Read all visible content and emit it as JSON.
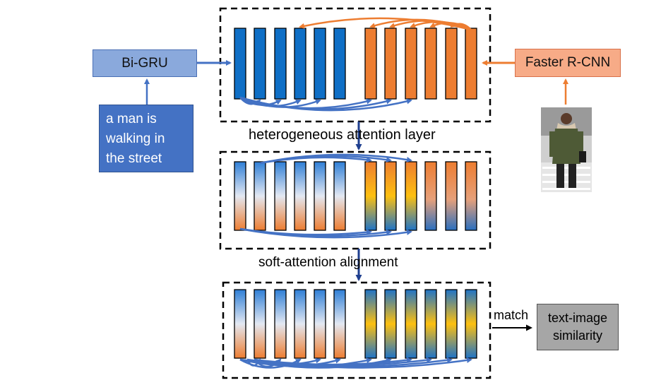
{
  "labels": {
    "bi_gru": "Bi-GRU",
    "faster_rcnn": "Faster R-CNN",
    "query_text": "a man is\nwalking in\nthe street",
    "heterogeneous_layer": "heterogeneous attention layer",
    "soft_attention": "soft-attention alignment",
    "match": "match",
    "similarity": "text-image\nsimilarity"
  },
  "stages": {
    "text_features_per_stage": 6,
    "image_features_per_stage": 6
  },
  "colors": {
    "text_feature": "#0f6fc6",
    "image_feature": "#ed7d31",
    "text_arrow": "#4472c4",
    "image_arrow": "#ed7d31",
    "flow_arrow": "#1f3f8f",
    "bi_gru_fill": "#8aa9dc",
    "faster_rcnn_fill": "#f7ab87",
    "query_fill": "#4472c4",
    "similarity_fill": "#a6a6a6",
    "gradient_yellow": "#fdc010"
  },
  "icons": {
    "photo": "man-walking-photo"
  }
}
